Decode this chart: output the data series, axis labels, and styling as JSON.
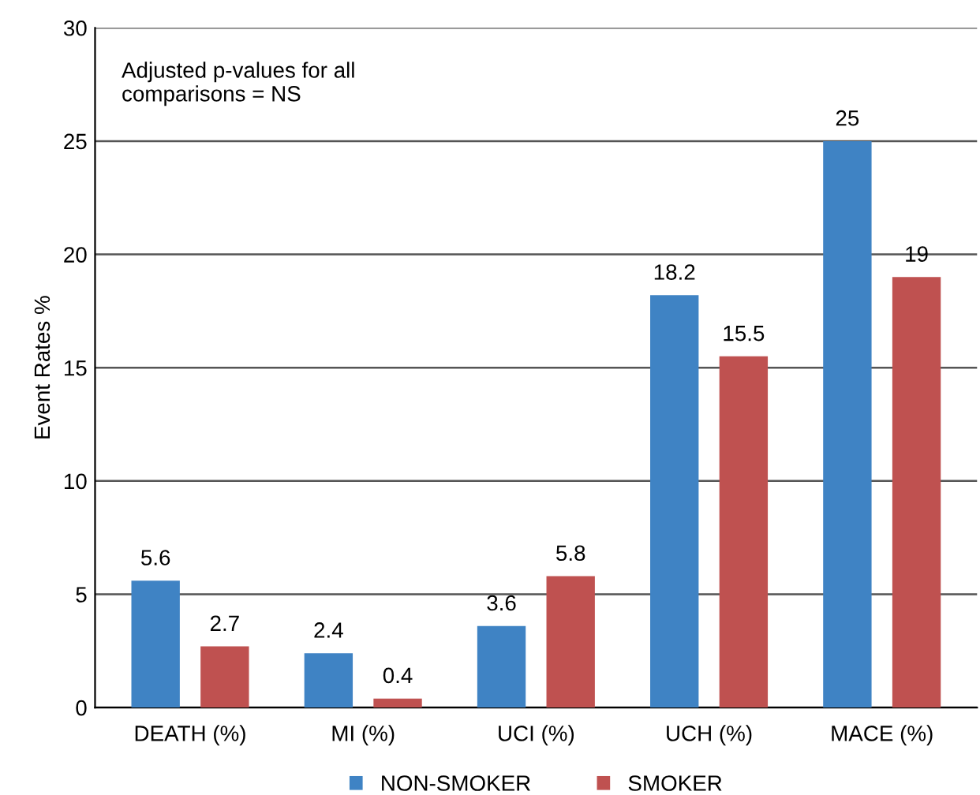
{
  "chart_data": {
    "type": "bar",
    "ylabel": "Event Rates %",
    "categories": [
      "DEATH (%)",
      "MI (%)",
      "UCI (%)",
      "UCH (%)",
      "MACE (%)"
    ],
    "series": [
      {
        "name": "NON-SMOKER",
        "color": "#3f83c4",
        "values": [
          5.6,
          2.4,
          3.6,
          18.2,
          25
        ]
      },
      {
        "name": "SMOKER",
        "color": "#bf5150",
        "values": [
          2.7,
          0.4,
          5.8,
          15.5,
          19
        ]
      }
    ],
    "ylim": [
      0,
      30
    ],
    "yticks": [
      0,
      5,
      10,
      15,
      20,
      25,
      30
    ],
    "grid": "y",
    "legend": "bottom",
    "data_labels": true,
    "annotations": [
      "Adjusted p-values for all\ncomparisons = NS"
    ]
  }
}
